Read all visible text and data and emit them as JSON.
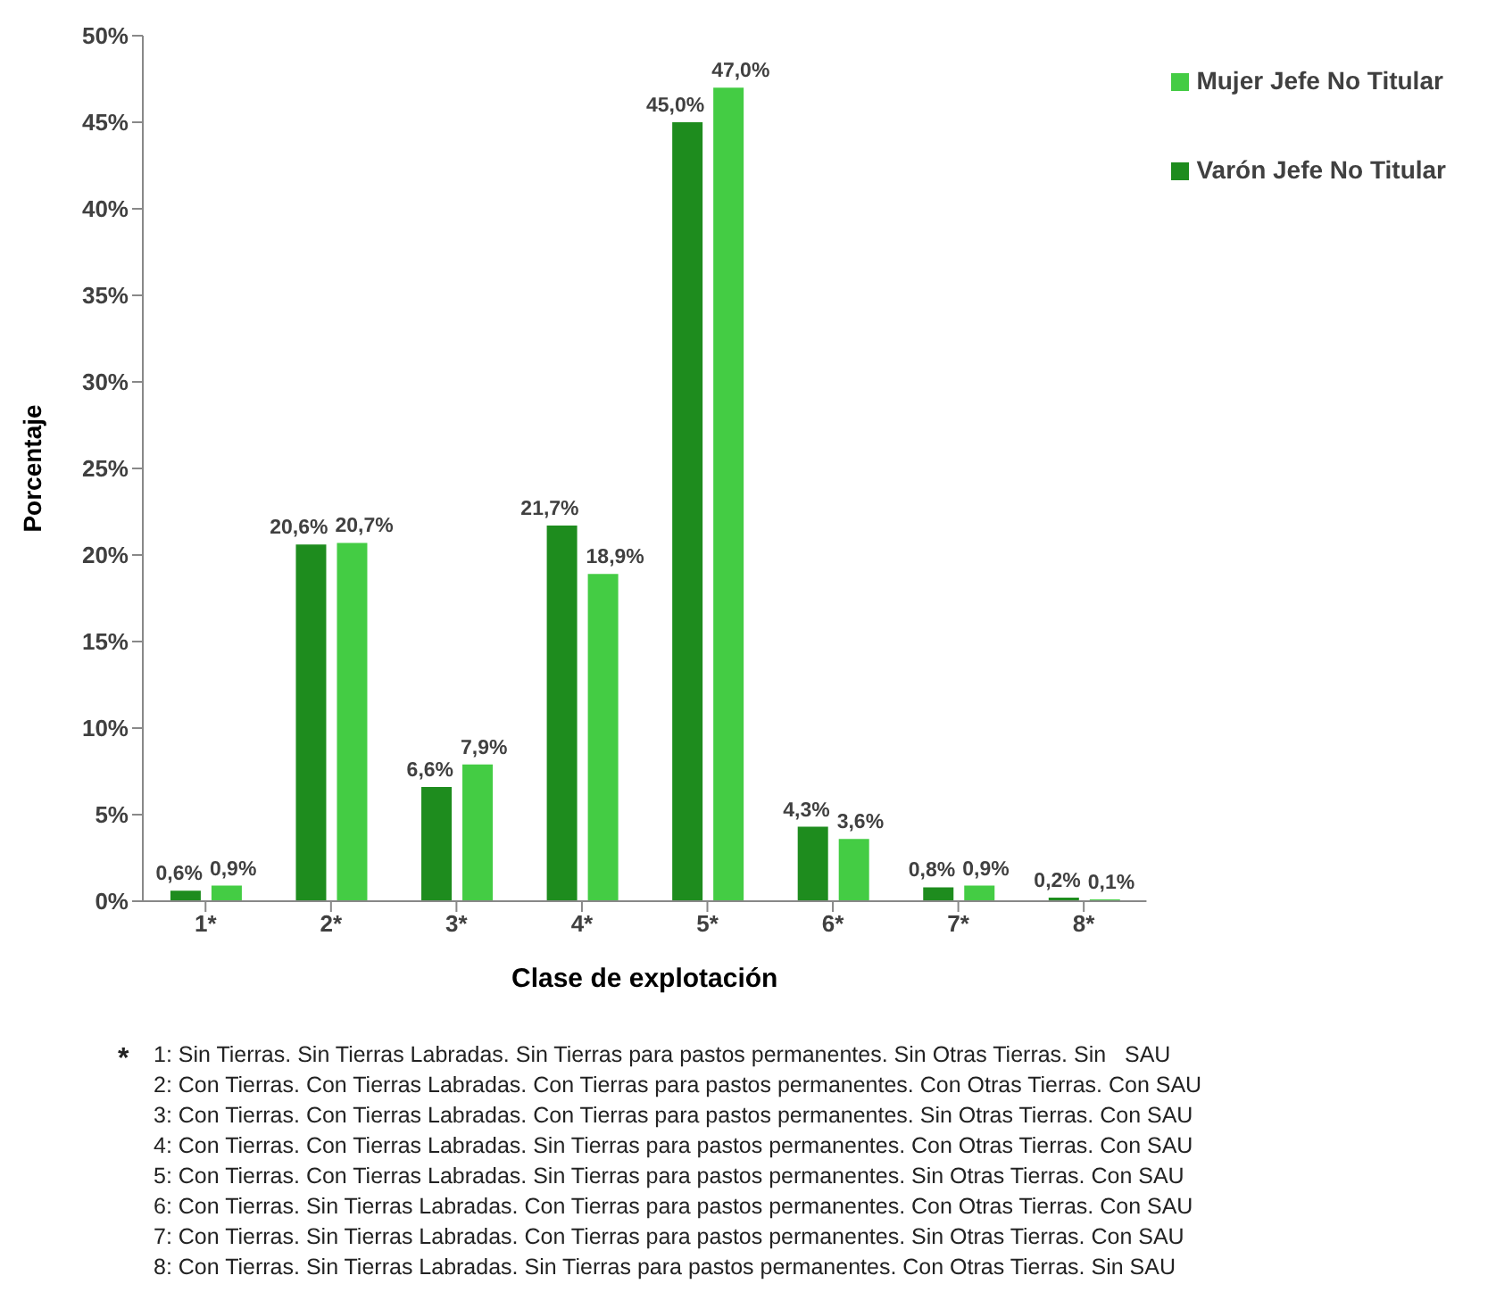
{
  "chart_data": {
    "type": "bar",
    "xlabel": "Clase de explotación",
    "ylabel": "Porcentaje",
    "categories": [
      "1*",
      "2*",
      "3*",
      "4*",
      "5*",
      "6*",
      "7*",
      "8*"
    ],
    "series": [
      {
        "name": "Varón Jefe No Titular",
        "color": "#1e8c1e",
        "values": [
          0.6,
          20.6,
          6.6,
          21.7,
          45.0,
          4.3,
          0.8,
          0.2
        ],
        "value_labels": [
          "0,6%",
          "20,6%",
          "6,6%",
          "21,7%",
          "45,0%",
          "4,3%",
          "0,8%",
          "0,2%"
        ]
      },
      {
        "name": "Mujer Jefe No Titular",
        "color": "#44cc44",
        "values": [
          0.9,
          20.7,
          7.9,
          18.9,
          47.0,
          3.6,
          0.9,
          0.1
        ],
        "value_labels": [
          "0,9%",
          "20,7%",
          "7,9%",
          "18,9%",
          "47,0%",
          "3,6%",
          "0,9%",
          "0,1%"
        ]
      }
    ],
    "ylim": [
      0,
      50
    ],
    "yticks": [
      {
        "value": 0,
        "label": "0%"
      },
      {
        "value": 5,
        "label": "5%"
      },
      {
        "value": 10,
        "label": "10%"
      },
      {
        "value": 15,
        "label": "15%"
      },
      {
        "value": 20,
        "label": "20%"
      },
      {
        "value": 25,
        "label": "25%"
      },
      {
        "value": 30,
        "label": "30%"
      },
      {
        "value": 35,
        "label": "35%"
      },
      {
        "value": 40,
        "label": "40%"
      },
      {
        "value": 45,
        "label": "45%"
      },
      {
        "value": 50,
        "label": "50%"
      }
    ],
    "grid": false,
    "legend": "top right",
    "annotations": [
      "*",
      "1: Sin Tierras. Sin Tierras Labradas. Sin Tierras para pastos permanentes. Sin Otras Tierras. Sin   SAU",
      "2: Con Tierras. Con Tierras Labradas. Con Tierras para pastos permanentes. Con Otras Tierras. Con SAU",
      "3: Con Tierras. Con Tierras Labradas. Con Tierras para pastos permanentes. Sin Otras Tierras. Con SAU",
      "4: Con Tierras. Con Tierras Labradas. Sin Tierras para pastos permanentes. Con Otras Tierras. Con SAU",
      "5: Con Tierras. Con Tierras Labradas. Sin Tierras para pastos permanentes. Sin Otras Tierras. Con SAU",
      "6: Con Tierras. Sin Tierras Labradas. Con Tierras para pastos permanentes. Con Otras Tierras. Con SAU",
      "7: Con Tierras. Sin Tierras Labradas. Con Tierras para pastos permanentes. Sin Otras Tierras. Con SAU",
      "8: Con Tierras. Sin Tierras Labradas. Sin Tierras para pastos permanentes. Con Otras Tierras. Sin SAU"
    ]
  }
}
